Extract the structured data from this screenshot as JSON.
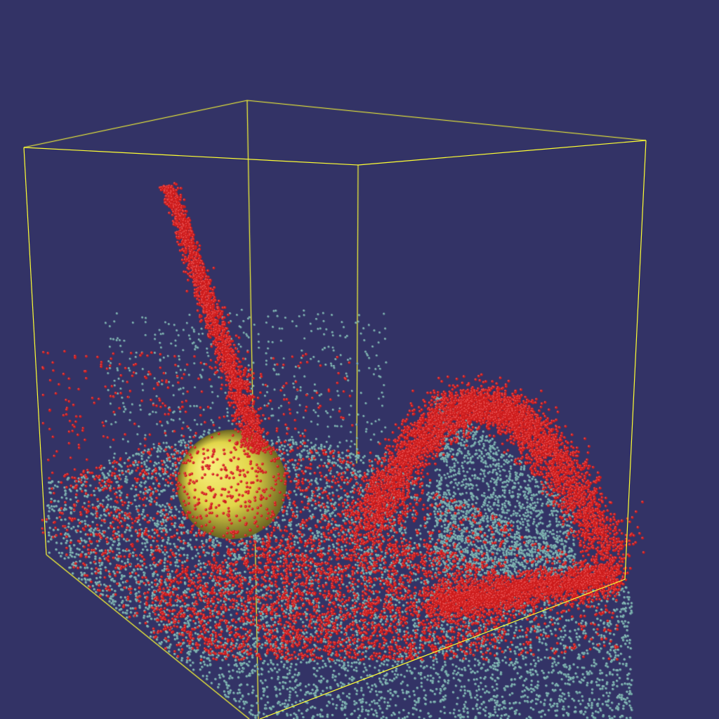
{
  "scene": {
    "background_color": "#333366",
    "box_color": "#ffff33",
    "fluid_particle_color": "#ce1c1c",
    "secondary_particle_color": "#6fa3a3",
    "sphere_color": "#e2d64a",
    "objects": [
      {
        "kind": "simulation-domain",
        "shape": "box"
      },
      {
        "kind": "rigid-body",
        "shape": "sphere"
      },
      {
        "kind": "fluid",
        "shape": "particles"
      }
    ]
  }
}
